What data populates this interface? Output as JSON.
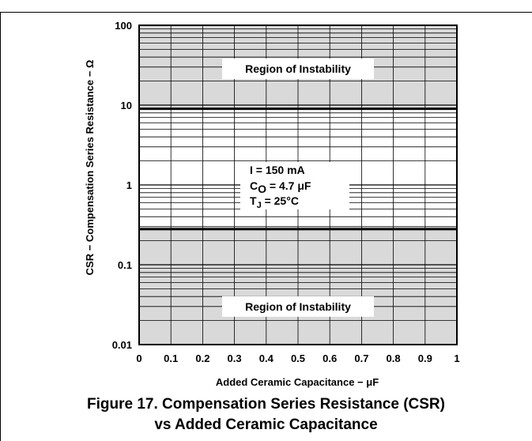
{
  "chart_data": {
    "type": "area",
    "xlabel": "Added Ceramic Capacitance − μF",
    "ylabel": "CSR − Compensation Series Resistance − Ω",
    "x_ticks": [
      "0",
      "0.1",
      "0.2",
      "0.3",
      "0.4",
      "0.5",
      "0.6",
      "0.7",
      "0.8",
      "0.9",
      "1"
    ],
    "y_ticks": [
      "0.01",
      "0.1",
      "1",
      "10",
      "100"
    ],
    "xlim": [
      0,
      1
    ],
    "ylim": [
      0.01,
      100
    ],
    "y_scale": "log",
    "grid": true,
    "regions": [
      {
        "name": "Region of Instability",
        "y_from": 9,
        "y_to": 100
      },
      {
        "name": "Region of Instability",
        "y_from": 0.01,
        "y_to": 0.28
      }
    ],
    "boundaries": [
      {
        "y": 9,
        "x": [
          0,
          1
        ]
      },
      {
        "y": 0.28,
        "x": [
          0,
          1
        ]
      }
    ],
    "conditions": {
      "line1": "I = 150 mA",
      "line2_main": "C",
      "line2_sub": "O",
      "line2_rest": " = 4.7 μF",
      "line3_main": "T",
      "line3_sub": "J",
      "line3_rest": " = 25°C"
    },
    "region_label": "Region of Instability",
    "colors": {
      "region_fill": "#d9d9d9",
      "grid": "#000000"
    }
  },
  "caption": {
    "line1": "Figure 17. Compensation Series Resistance (CSR)",
    "line2": "vs Added Ceramic Capacitance"
  }
}
